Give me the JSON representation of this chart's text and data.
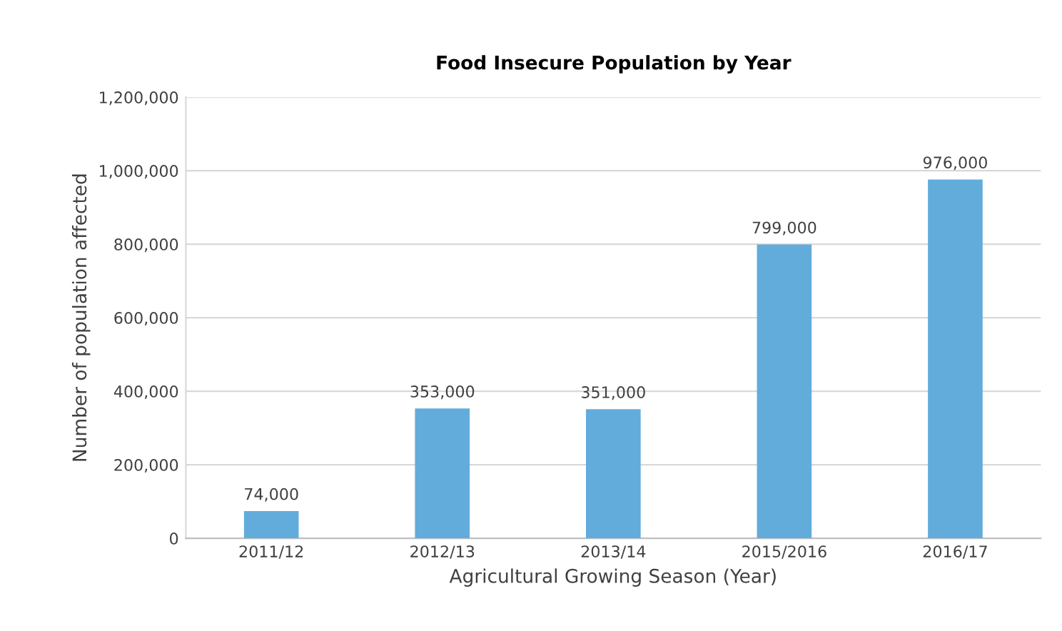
{
  "chart_data": {
    "type": "bar",
    "title": "Food Insecure Population by Year",
    "xlabel": "Agricultural Growing Season (Year)",
    "ylabel": "Number of population affected",
    "categories": [
      "2011/12",
      "2012/13",
      "2013/14",
      "2015/2016",
      "2016/17"
    ],
    "values": [
      74000,
      353000,
      351000,
      799000,
      976000
    ],
    "value_labels": [
      "74,000",
      "353,000",
      "351,000",
      "799,000",
      "976,000"
    ],
    "color": "#62acdc",
    "ylim": [
      0,
      1200000
    ],
    "yticks": [
      {
        "value": 0,
        "label": "0"
      },
      {
        "value": 200000,
        "label": "200,000"
      },
      {
        "value": 400000,
        "label": "400,000"
      },
      {
        "value": 600000,
        "label": "600,000"
      },
      {
        "value": 800000,
        "label": "800,000"
      },
      {
        "value": 1000000,
        "label": "1,000,000"
      },
      {
        "value": 1200000,
        "label": "1,200,000"
      }
    ],
    "grid": "y"
  }
}
